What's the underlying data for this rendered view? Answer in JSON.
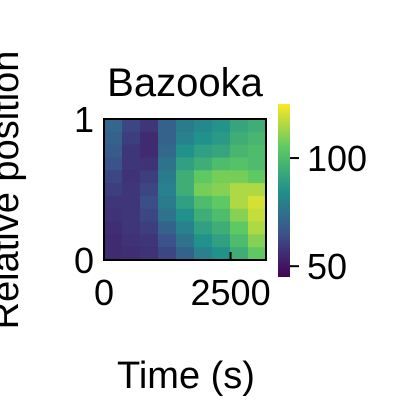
{
  "chart_data": {
    "type": "heatmap",
    "title": "Bazooka",
    "xlabel": "Time (s)",
    "ylabel": "Relative position",
    "xlim": [
      0,
      3200
    ],
    "ylim": [
      0,
      1
    ],
    "x_ticks": [
      0,
      2500
    ],
    "x_tick_labels": [
      "0",
      "2500"
    ],
    "y_ticks": [
      0,
      1
    ],
    "y_tick_labels": [
      "0",
      "1"
    ],
    "colormap": "viridis",
    "colorbar": {
      "range": [
        45,
        125
      ],
      "ticks": [
        50,
        100
      ],
      "tick_labels": [
        "50",
        "100"
      ]
    },
    "grid_rows": [
      "1.0",
      "0.9",
      "0.8",
      "0.7",
      "0.6",
      "0.5",
      "0.4",
      "0.3",
      "0.2",
      "0.1",
      "0.0"
    ],
    "grid_cols": [
      0,
      400,
      800,
      1200,
      1600,
      2000,
      2400,
      2800,
      3200
    ],
    "values": [
      [
        72,
        62,
        58,
        70,
        78,
        82,
        86,
        92,
        95
      ],
      [
        70,
        60,
        55,
        70,
        80,
        85,
        88,
        95,
        98
      ],
      [
        68,
        58,
        55,
        72,
        85,
        90,
        92,
        98,
        100
      ],
      [
        65,
        58,
        57,
        75,
        90,
        95,
        100,
        102,
        100
      ],
      [
        62,
        57,
        60,
        78,
        95,
        105,
        108,
        108,
        105
      ],
      [
        60,
        58,
        62,
        80,
        95,
        108,
        110,
        115,
        115
      ],
      [
        58,
        58,
        64,
        78,
        90,
        100,
        105,
        115,
        120
      ],
      [
        57,
        58,
        62,
        75,
        85,
        95,
        100,
        110,
        118
      ],
      [
        56,
        58,
        60,
        70,
        80,
        90,
        95,
        105,
        115
      ],
      [
        55,
        57,
        58,
        65,
        75,
        85,
        90,
        100,
        110
      ],
      [
        55,
        56,
        57,
        62,
        70,
        80,
        85,
        95,
        105
      ]
    ]
  }
}
